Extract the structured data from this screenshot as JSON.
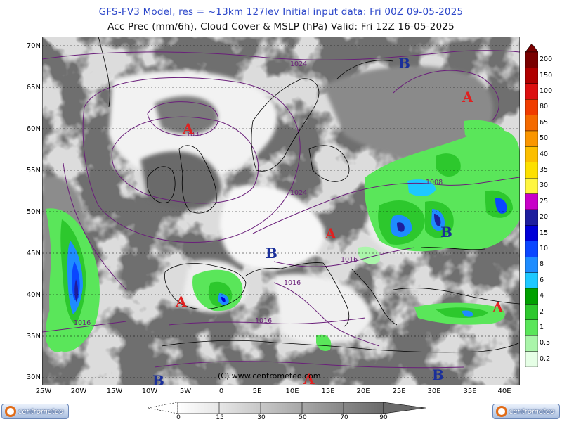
{
  "header": {
    "line1": "GFS-FV3 Model, res = ~13km 127lev    Initial input data: Fri 00Z 09-05-2025",
    "line2": "Acc Prec (mm/6h), Cloud Cover & MSLP (hPa)  Valid: Fri 12Z 16-05-2025"
  },
  "lat_labels": [
    "70N",
    "65N",
    "60N",
    "55N",
    "50N",
    "45N",
    "40N",
    "35N",
    "30N"
  ],
  "lon_labels": [
    "25W",
    "20W",
    "15W",
    "10W",
    "5W",
    "0",
    "5E",
    "10E",
    "15E",
    "20E",
    "25E",
    "30E",
    "35E",
    "40E"
  ],
  "isobar_labels": [
    "1024",
    "1032",
    "1024",
    "1008",
    "1016",
    "1016",
    "1016",
    "1016"
  ],
  "pressure_centers": [
    {
      "letter": "B",
      "type": "low"
    },
    {
      "letter": "A",
      "type": "high"
    },
    {
      "letter": "A",
      "type": "high"
    },
    {
      "letter": "A",
      "type": "high"
    },
    {
      "letter": "B",
      "type": "low"
    },
    {
      "letter": "B",
      "type": "low"
    },
    {
      "letter": "A",
      "type": "high"
    },
    {
      "letter": "A",
      "type": "high"
    },
    {
      "letter": "B",
      "type": "low"
    },
    {
      "letter": "A",
      "type": "high"
    },
    {
      "letter": "B",
      "type": "low"
    }
  ],
  "copyright": "(C)  www.centrometeo.com",
  "precip_legend": {
    "labels": [
      "200",
      "150",
      "100",
      "80",
      "65",
      "50",
      "40",
      "35",
      "30",
      "25",
      "20",
      "15",
      "10",
      "8",
      "6",
      "4",
      "2",
      "1",
      "0.5",
      "0.2"
    ],
    "colors": [
      "#7a0000",
      "#b00000",
      "#dc1010",
      "#f03c00",
      "#f46a00",
      "#fa9600",
      "#fcbf00",
      "#fde000",
      "#fff640",
      "#c800c8",
      "#1e1e9e",
      "#0000d8",
      "#0a46ff",
      "#1e8cff",
      "#1ec8ff",
      "#00a000",
      "#2dc82d",
      "#5ae65a",
      "#aaf5aa",
      "#e6ffe6"
    ]
  },
  "cloud_legend": {
    "labels": [
      "0",
      "15",
      "30",
      "50",
      "70",
      "90"
    ]
  },
  "logos": {
    "left": "centrometeo",
    "right": "centrometeo"
  },
  "colors": {
    "low": "#1a2f9a",
    "high": "#e02020",
    "isobar": "#6a1f7a",
    "land_border": "#000000"
  }
}
